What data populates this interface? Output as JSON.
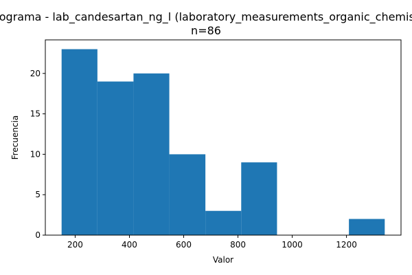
{
  "chart_data": {
    "type": "bar",
    "title": "Histograma - lab_candesartan_ng_l (laboratory_measurements_organic_chemistry)",
    "subtitle": "n=86",
    "xlabel": "Valor",
    "ylabel": "Frecuencia",
    "bin_edges": [
      150,
      282,
      415,
      547,
      680,
      812,
      944,
      1077,
      1209,
      1341
    ],
    "values": [
      23,
      19,
      20,
      10,
      3,
      9,
      0,
      0,
      2
    ],
    "xlim": [
      90,
      1401
    ],
    "ylim": [
      0,
      24.15
    ],
    "xticks": [
      200,
      400,
      600,
      800,
      1000,
      1200
    ],
    "yticks": [
      0,
      5,
      10,
      15,
      20
    ],
    "bar_color": "#1f77b4",
    "grid": false,
    "legend": "none"
  }
}
